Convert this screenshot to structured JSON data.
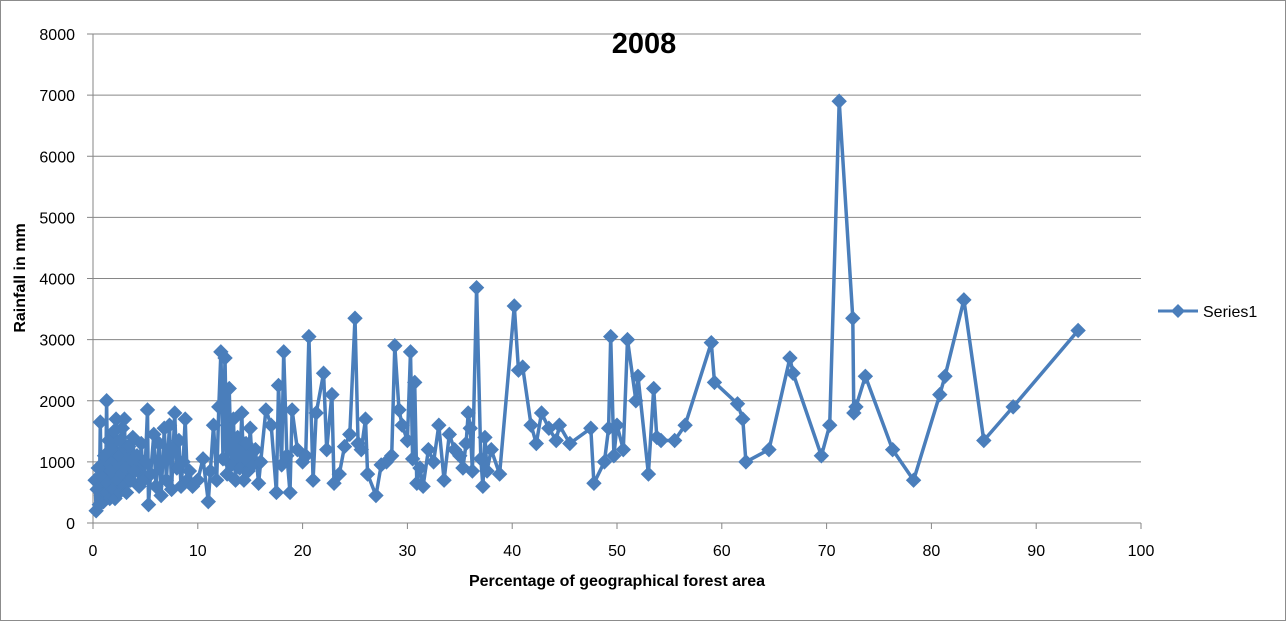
{
  "chart_data": {
    "type": "line",
    "title": "2008",
    "xlabel": "Percentage of geographical forest area",
    "ylabel": "Rainfall in mm",
    "xlim": [
      0,
      100
    ],
    "ylim": [
      0,
      8000
    ],
    "xticks": [
      0,
      10,
      20,
      30,
      40,
      50,
      60,
      70,
      80,
      90,
      100
    ],
    "yticks": [
      0,
      1000,
      2000,
      3000,
      4000,
      5000,
      6000,
      7000,
      8000
    ],
    "grid": "horizontal",
    "legend_position": "right",
    "series": [
      {
        "name": "Series1",
        "color": "#4a7ebb",
        "marker": "diamond",
        "points": [
          [
            0.2,
            700
          ],
          [
            0.3,
            200
          ],
          [
            0.4,
            550
          ],
          [
            0.5,
            900
          ],
          [
            0.6,
            300
          ],
          [
            0.7,
            1650
          ],
          [
            0.8,
            450
          ],
          [
            0.9,
            750
          ],
          [
            1.0,
            350
          ],
          [
            1.1,
            1100
          ],
          [
            1.2,
            500
          ],
          [
            1.3,
            2000
          ],
          [
            1.4,
            650
          ],
          [
            1.5,
            1350
          ],
          [
            1.6,
            400
          ],
          [
            1.7,
            850
          ],
          [
            1.8,
            1200
          ],
          [
            1.9,
            550
          ],
          [
            2.0,
            1500
          ],
          [
            2.1,
            400
          ],
          [
            2.2,
            1700
          ],
          [
            2.3,
            700
          ],
          [
            2.4,
            1100
          ],
          [
            2.5,
            500
          ],
          [
            2.6,
            1350
          ],
          [
            2.7,
            800
          ],
          [
            2.8,
            1550
          ],
          [
            2.9,
            600
          ],
          [
            3.0,
            1700
          ],
          [
            3.1,
            900
          ],
          [
            3.2,
            500
          ],
          [
            3.4,
            1250
          ],
          [
            3.6,
            700
          ],
          [
            3.8,
            1400
          ],
          [
            4.0,
            850
          ],
          [
            4.2,
            1100
          ],
          [
            4.4,
            600
          ],
          [
            4.6,
            1300
          ],
          [
            4.8,
            700
          ],
          [
            5.0,
            1000
          ],
          [
            5.2,
            1850
          ],
          [
            5.3,
            300
          ],
          [
            5.5,
            800
          ],
          [
            5.8,
            1450
          ],
          [
            6.0,
            600
          ],
          [
            6.3,
            1300
          ],
          [
            6.5,
            450
          ],
          [
            6.8,
            1550
          ],
          [
            7.0,
            700
          ],
          [
            7.3,
            1600
          ],
          [
            7.5,
            550
          ],
          [
            7.8,
            1800
          ],
          [
            8.0,
            900
          ],
          [
            8.2,
            1350
          ],
          [
            8.4,
            600
          ],
          [
            8.6,
            1000
          ],
          [
            8.8,
            1700
          ],
          [
            9.0,
            700
          ],
          [
            9.2,
            850
          ],
          [
            9.5,
            600
          ],
          [
            10.0,
            700
          ],
          [
            10.5,
            1050
          ],
          [
            11.0,
            350
          ],
          [
            11.2,
            850
          ],
          [
            11.5,
            1600
          ],
          [
            11.8,
            700
          ],
          [
            12.0,
            1900
          ],
          [
            12.2,
            2800
          ],
          [
            12.4,
            1050
          ],
          [
            12.6,
            2700
          ],
          [
            12.8,
            800
          ],
          [
            13.0,
            2200
          ],
          [
            13.2,
            950
          ],
          [
            13.4,
            1700
          ],
          [
            13.6,
            700
          ],
          [
            13.8,
            1400
          ],
          [
            14.0,
            900
          ],
          [
            14.2,
            1800
          ],
          [
            14.4,
            700
          ],
          [
            14.6,
            1300
          ],
          [
            14.8,
            850
          ],
          [
            15.0,
            1550
          ],
          [
            15.2,
            950
          ],
          [
            15.5,
            1200
          ],
          [
            15.8,
            650
          ],
          [
            16.0,
            1000
          ],
          [
            16.5,
            1850
          ],
          [
            17.0,
            1600
          ],
          [
            17.5,
            500
          ],
          [
            17.7,
            2250
          ],
          [
            18.0,
            950
          ],
          [
            18.2,
            2800
          ],
          [
            18.5,
            1100
          ],
          [
            18.8,
            500
          ],
          [
            19.0,
            1850
          ],
          [
            19.5,
            1200
          ],
          [
            20.0,
            1000
          ],
          [
            20.3,
            1100
          ],
          [
            20.6,
            3050
          ],
          [
            21.0,
            700
          ],
          [
            21.3,
            1800
          ],
          [
            22.0,
            2450
          ],
          [
            22.3,
            1200
          ],
          [
            22.8,
            2100
          ],
          [
            23.0,
            650
          ],
          [
            23.5,
            800
          ],
          [
            24.0,
            1250
          ],
          [
            24.5,
            1450
          ],
          [
            25.0,
            3350
          ],
          [
            25.3,
            1300
          ],
          [
            25.6,
            1200
          ],
          [
            26.0,
            1700
          ],
          [
            26.2,
            800
          ],
          [
            27.0,
            450
          ],
          [
            27.5,
            950
          ],
          [
            28.0,
            1000
          ],
          [
            28.5,
            1100
          ],
          [
            28.8,
            2900
          ],
          [
            29.2,
            1850
          ],
          [
            29.5,
            1600
          ],
          [
            30.0,
            1350
          ],
          [
            30.3,
            2800
          ],
          [
            30.5,
            1050
          ],
          [
            30.7,
            2300
          ],
          [
            30.9,
            650
          ],
          [
            31.2,
            900
          ],
          [
            31.5,
            600
          ],
          [
            32.0,
            1200
          ],
          [
            32.5,
            1000
          ],
          [
            33.0,
            1600
          ],
          [
            33.5,
            700
          ],
          [
            34.0,
            1450
          ],
          [
            34.5,
            1200
          ],
          [
            35.0,
            1100
          ],
          [
            35.3,
            900
          ],
          [
            35.6,
            1300
          ],
          [
            35.8,
            1800
          ],
          [
            36.0,
            1550
          ],
          [
            36.2,
            850
          ],
          [
            36.6,
            3850
          ],
          [
            37.0,
            1050
          ],
          [
            37.2,
            600
          ],
          [
            37.4,
            1400
          ],
          [
            37.6,
            850
          ],
          [
            38.0,
            1200
          ],
          [
            38.8,
            800
          ],
          [
            40.2,
            3550
          ],
          [
            40.6,
            2500
          ],
          [
            41.0,
            2550
          ],
          [
            41.8,
            1600
          ],
          [
            42.3,
            1300
          ],
          [
            42.8,
            1800
          ],
          [
            43.5,
            1550
          ],
          [
            44.2,
            1350
          ],
          [
            44.5,
            1600
          ],
          [
            45.5,
            1300
          ],
          [
            47.5,
            1550
          ],
          [
            47.8,
            650
          ],
          [
            48.8,
            1000
          ],
          [
            49.2,
            1550
          ],
          [
            49.4,
            3050
          ],
          [
            49.7,
            1100
          ],
          [
            50.0,
            1600
          ],
          [
            50.6,
            1200
          ],
          [
            51.0,
            3000
          ],
          [
            51.8,
            2000
          ],
          [
            52.0,
            2400
          ],
          [
            53.0,
            800
          ],
          [
            53.5,
            2200
          ],
          [
            53.8,
            1400
          ],
          [
            54.2,
            1350
          ],
          [
            55.5,
            1350
          ],
          [
            56.5,
            1600
          ],
          [
            59.0,
            2950
          ],
          [
            59.3,
            2300
          ],
          [
            61.5,
            1950
          ],
          [
            62.0,
            1700
          ],
          [
            62.3,
            1000
          ],
          [
            64.5,
            1200
          ],
          [
            66.5,
            2700
          ],
          [
            66.8,
            2450
          ],
          [
            69.5,
            1100
          ],
          [
            70.3,
            1600
          ],
          [
            71.2,
            6900
          ],
          [
            72.5,
            3350
          ],
          [
            72.6,
            1800
          ],
          [
            72.8,
            1900
          ],
          [
            73.7,
            2400
          ],
          [
            76.3,
            1200
          ],
          [
            78.3,
            700
          ],
          [
            80.8,
            2100
          ],
          [
            81.3,
            2400
          ],
          [
            83.1,
            3650
          ],
          [
            85.0,
            1350
          ],
          [
            87.8,
            1900
          ],
          [
            94.0,
            3150
          ]
        ]
      }
    ]
  }
}
